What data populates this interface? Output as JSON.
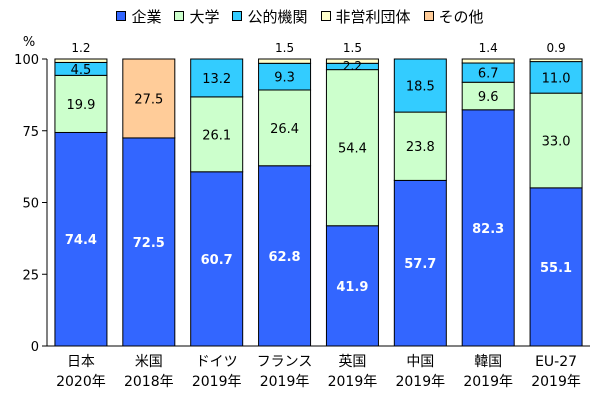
{
  "chart_data": {
    "type": "bar",
    "stacked": true,
    "title": "",
    "ylabel": "%",
    "ylim": [
      0,
      100
    ],
    "yticks": [
      0,
      25,
      50,
      75,
      100
    ],
    "categories": [
      "日本\n2020年",
      "米国\n2018年",
      "ドイツ\n2019年",
      "フランス\n2019年",
      "英国\n2019年",
      "中国\n2019年",
      "韓国\n2019年",
      "EU-27\n2019年"
    ],
    "series": [
      {
        "name": "企業",
        "color": "#3366ff",
        "values": [
          74.4,
          72.5,
          60.7,
          62.8,
          41.9,
          57.7,
          82.3,
          55.1
        ],
        "labels": [
          "74.4",
          "72.5",
          "60.7",
          "62.8",
          "41.9",
          "57.7",
          "82.3",
          "55.1"
        ]
      },
      {
        "name": "大学",
        "color": "#ccffcc",
        "values": [
          19.9,
          0,
          26.1,
          26.4,
          54.4,
          23.8,
          9.6,
          33.0
        ],
        "labels": [
          "19.9",
          "",
          "26.1",
          "26.4",
          "54.4",
          "23.8",
          "9.6",
          "33.0"
        ]
      },
      {
        "name": "公的機関",
        "color": "#33ccff",
        "values": [
          4.5,
          0,
          13.2,
          9.3,
          2.2,
          18.5,
          6.7,
          11.0
        ],
        "labels": [
          "4.5",
          "",
          "13.2",
          "9.3",
          "2.2",
          "18.5",
          "6.7",
          "11.0"
        ]
      },
      {
        "name": "非営利団体",
        "color": "#ffffcc",
        "values": [
          1.2,
          0,
          0,
          1.5,
          1.5,
          0,
          1.4,
          0.9
        ],
        "labels": [
          "1.2",
          "",
          "",
          "1.5",
          "1.5",
          "",
          "1.4",
          "0.9"
        ]
      },
      {
        "name": "その他",
        "color": "#ffcc99",
        "values": [
          0,
          27.5,
          0,
          0,
          0,
          0,
          0,
          0
        ],
        "labels": [
          "",
          "27.5",
          "",
          "",
          "",
          "",
          "",
          ""
        ]
      }
    ],
    "grid": false,
    "legend_position": "top"
  }
}
